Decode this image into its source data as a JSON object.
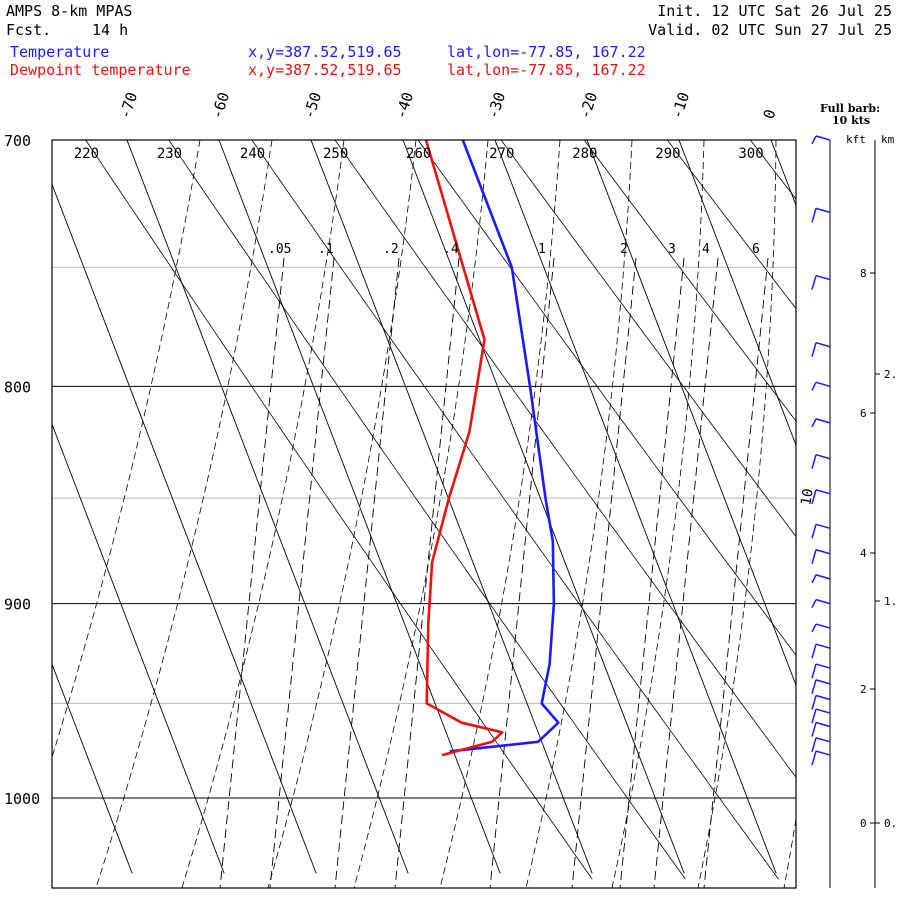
{
  "header": {
    "model": "AMPS 8-km MPAS",
    "fcst_label": "Fcst.",
    "fcst_value": "14 h",
    "init": "Init. 12 UTC Sat 26 Jul 25",
    "valid": "Valid. 02 UTC Sun 27 Jul 25",
    "temp_label": "Temperature",
    "dew_label": "Dewpoint temperature",
    "xy": "x,y=387.52,519.65",
    "latlon": "lat,lon=-77.85, 167.22"
  },
  "barb_note": {
    "line1": "Full barb:",
    "line2": "10 kts"
  },
  "height_axis": {
    "left_label": "kft",
    "right_label": "km"
  },
  "colors": {
    "temperature": "#1a1aff",
    "dewpoint": "#ee1111",
    "barbs": "#1a1aff"
  },
  "chart_data": {
    "type": "line",
    "diagram": "Skew-T log-P",
    "y_axis": {
      "quantity": "pressure (hPa)",
      "scale": "log",
      "range": [
        1040,
        700
      ],
      "ticks": [
        700,
        800,
        900,
        1000
      ]
    },
    "isotherms_C": [
      -70,
      -60,
      -50,
      -40,
      -30,
      -20,
      -10,
      0
    ],
    "isotherm_labels": [
      "-70",
      "-60",
      "-50",
      "-40",
      "-30",
      "-20",
      "-10",
      "0"
    ],
    "dry_adiabats_K": [
      220,
      230,
      240,
      250,
      260,
      270,
      280,
      290,
      300
    ],
    "mixing_ratio_labels": [
      ".05",
      ".1",
      ".2",
      ".4",
      "1",
      "2",
      "3",
      "4",
      "6"
    ],
    "extra_label": "10",
    "grid": true,
    "series": [
      {
        "name": "Temperature",
        "points": [
          {
            "p": 700,
            "t": -33.5
          },
          {
            "p": 750,
            "t": -33.5
          },
          {
            "p": 800,
            "t": -36.5
          },
          {
            "p": 850,
            "t": -39.5
          },
          {
            "p": 870,
            "t": -40.5
          },
          {
            "p": 900,
            "t": -43.0
          },
          {
            "p": 930,
            "t": -46.0
          },
          {
            "p": 950,
            "t": -48.5
          },
          {
            "p": 960,
            "t": -47.5
          },
          {
            "p": 970,
            "t": -50.5
          },
          {
            "p": 975,
            "t": -60.5
          }
        ]
      },
      {
        "name": "Dewpoint temperature",
        "points": [
          {
            "p": 700,
            "t": -37.5
          },
          {
            "p": 780,
            "t": -39.5
          },
          {
            "p": 820,
            "t": -45.0
          },
          {
            "p": 850,
            "t": -50.0
          },
          {
            "p": 880,
            "t": -54.5
          },
          {
            "p": 910,
            "t": -57.5
          },
          {
            "p": 950,
            "t": -61.0
          },
          {
            "p": 960,
            "t": -58.0
          },
          {
            "p": 965,
            "t": -54.0
          },
          {
            "p": 970,
            "t": -55.5
          },
          {
            "p": 977,
            "t": -61.5
          }
        ]
      }
    ],
    "height_ticks_kft": [
      "8",
      "6",
      "4",
      "2",
      "0"
    ],
    "height_ticks_km": [
      "2.",
      "1.",
      "0."
    ],
    "wind_barbs": [
      {
        "p": 700,
        "kts": 5
      },
      {
        "p": 728,
        "kts": 10
      },
      {
        "p": 755,
        "kts": 10
      },
      {
        "p": 783,
        "kts": 10
      },
      {
        "p": 800,
        "kts": 5
      },
      {
        "p": 816,
        "kts": 5
      },
      {
        "p": 832,
        "kts": 10
      },
      {
        "p": 848,
        "kts": 10
      },
      {
        "p": 864,
        "kts": 10
      },
      {
        "p": 876,
        "kts": 10
      },
      {
        "p": 888,
        "kts": 5
      },
      {
        "p": 900,
        "kts": 5
      },
      {
        "p": 912,
        "kts": 5
      },
      {
        "p": 922,
        "kts": 10
      },
      {
        "p": 932,
        "kts": 10
      },
      {
        "p": 940,
        "kts": 10
      },
      {
        "p": 948,
        "kts": 10
      },
      {
        "p": 955,
        "kts": 10
      },
      {
        "p": 962,
        "kts": 10
      },
      {
        "p": 970,
        "kts": 10
      },
      {
        "p": 977,
        "kts": 10
      }
    ]
  }
}
